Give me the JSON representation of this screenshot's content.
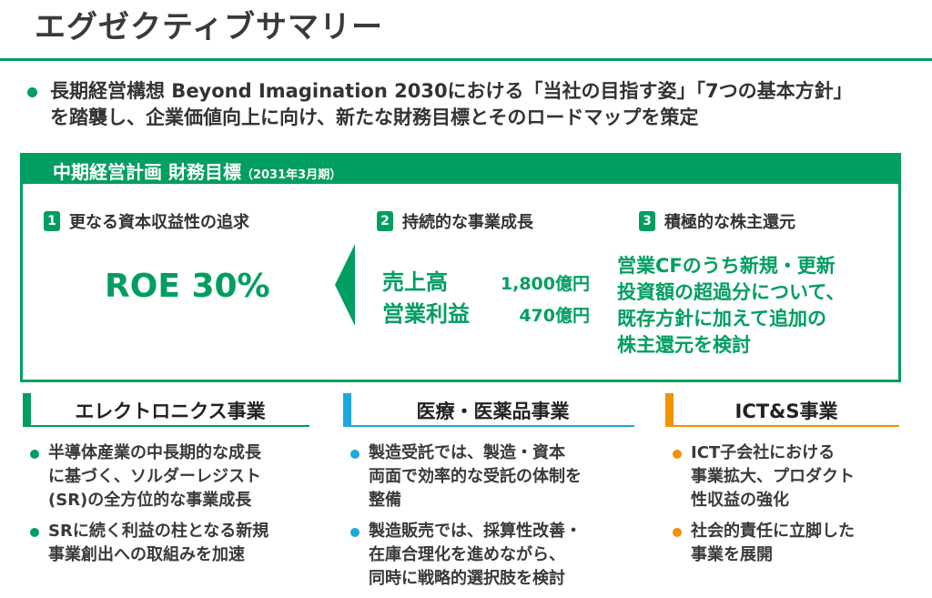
{
  "title": "エグゼクティブサマリー",
  "intro": [
    "長期経営構想 Beyond Imagination 2030における「当社の目指す姿」「7つの基本方針」",
    "を踏襲し、企業価値向上に向け、新たな財務目標とそのロードマップを策定"
  ],
  "colors": {
    "green": "#009e60",
    "blue": "#1ea8e0",
    "orange": "#f39200"
  },
  "targets": {
    "heading": "中期経営計画 財務目標",
    "period": "（2031年3月期）",
    "goals": [
      {
        "num": "1",
        "label": "更なる資本収益性の追求"
      },
      {
        "num": "2",
        "label": "持続的な事業成長"
      },
      {
        "num": "3",
        "label": "積極的な株主還元"
      }
    ],
    "roe": "ROE 30%",
    "kpis": [
      {
        "label": "売上高",
        "value": "1,800億円"
      },
      {
        "label": "営業利益",
        "value": "470億円"
      }
    ],
    "return_lines": [
      "営業CFのうち新規・更新",
      "投資額の超過分について、",
      "既存方針に加えて追加の",
      "株主還元を検討"
    ]
  },
  "segments": [
    {
      "name": "エレクトロニクス事業",
      "bullets": [
        [
          "半導体産業の中長期的な成長",
          "に基づく、ソルダーレジスト",
          "(SR)の全方位的な事業成長"
        ],
        [
          "SRに続く利益の柱となる新規",
          "事業創出への取組みを加速"
        ]
      ]
    },
    {
      "name": "医療・医薬品事業",
      "bullets": [
        [
          "製造受託では、製造・資本",
          "両面で効率的な受託の体制を",
          "整備"
        ],
        [
          "製造販売では、採算性改善・",
          "在庫合理化を進めながら、",
          "同時に戦略的選択肢を検討"
        ]
      ]
    },
    {
      "name": "ICT&S事業",
      "bullets": [
        [
          "ICT子会社における",
          "事業拡大、プロダクト",
          "性収益の強化"
        ],
        [
          "社会的責任に立脚した",
          "事業を展開"
        ]
      ]
    }
  ]
}
